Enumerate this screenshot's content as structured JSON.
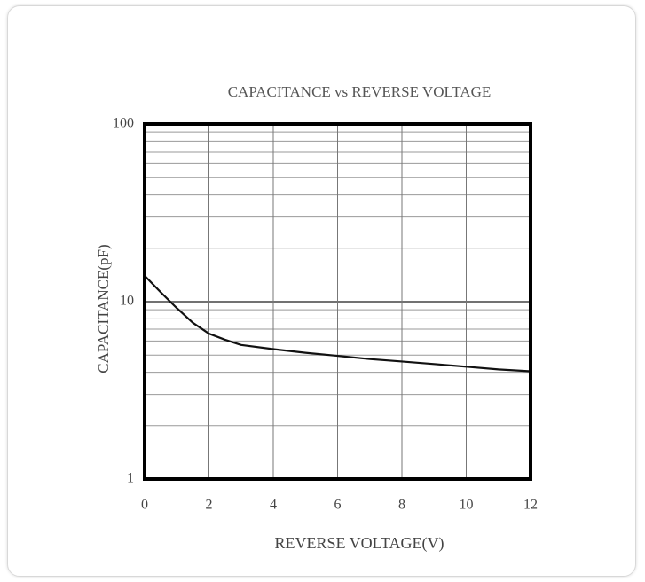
{
  "chart_data": {
    "type": "line",
    "title": "CAPACITANCE vs REVERSE VOLTAGE",
    "x_label": "REVERSE VOLTAGE(V)",
    "y_label": "CAPACITANCE(pF)",
    "x": [
      0,
      0.5,
      1,
      1.5,
      2,
      2.5,
      3,
      4,
      5,
      6,
      7,
      8,
      9,
      10,
      11,
      12
    ],
    "series": [
      {
        "name": "Capacitance",
        "color": "#111111",
        "values": [
          14,
          11.3,
          9.2,
          7.6,
          6.6,
          6.1,
          5.7,
          5.4,
          5.15,
          4.95,
          4.75,
          4.6,
          4.45,
          4.3,
          4.15,
          4.05
        ]
      }
    ],
    "xlim": [
      0,
      12
    ],
    "xticks": [
      0,
      2,
      4,
      6,
      8,
      10,
      12
    ],
    "ylim": [
      1,
      100
    ],
    "yticks": [
      1,
      10,
      100
    ],
    "y_log": true,
    "y_minor_ticks": [
      2,
      3,
      4,
      5,
      6,
      7,
      8,
      9,
      20,
      30,
      40,
      50,
      60,
      70,
      80,
      90
    ],
    "grid": true
  }
}
